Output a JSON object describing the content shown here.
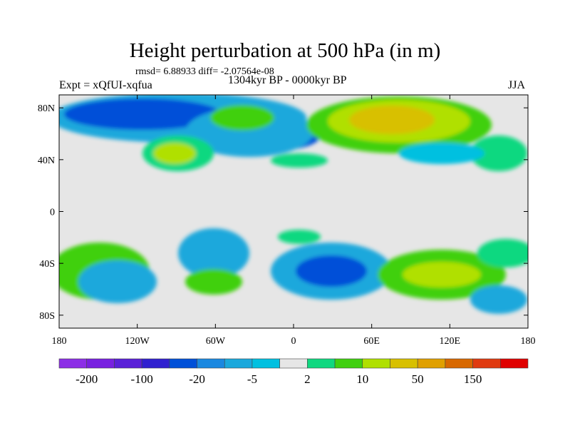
{
  "chart_data": {
    "type": "heatmap",
    "title": "Height perturbation at 500 hPa (in m)",
    "subtitle": "rmsd= 6.88933 diff= -2.07564e-08",
    "left_string": "Expt = xQfUI-xqfua",
    "center_string": "1304kyr BP - 0000kyr BP",
    "right_string": "JJA",
    "x_ticks": [
      "180",
      "120W",
      "60W",
      "0",
      "60E",
      "120E",
      "180"
    ],
    "x_values": [
      -180,
      -120,
      -60,
      0,
      60,
      120,
      180
    ],
    "y_ticks": [
      "80N",
      "40N",
      "0",
      "40S",
      "80S"
    ],
    "y_values": [
      80,
      40,
      0,
      -40,
      -80
    ],
    "xlim": [
      -180,
      180
    ],
    "ylim": [
      -90,
      90
    ],
    "colorbar": {
      "levels": [
        -250,
        -200,
        -150,
        -100,
        -50,
        -20,
        -10,
        -5,
        -2,
        2,
        5,
        10,
        20,
        50,
        100,
        150,
        200
      ],
      "labels": [
        "-200",
        "-100",
        "-20",
        "-5",
        "2",
        "10",
        "50",
        "150"
      ],
      "colors": [
        "#8c2ee6",
        "#7820e0",
        "#5a20d8",
        "#3020d0",
        "#0050d8",
        "#1a88e0",
        "#1aa8dc",
        "#00c0e0",
        "#e6e6e6",
        "#10d880",
        "#40d010",
        "#b0e000",
        "#d8c000",
        "#e0a000",
        "#d86800",
        "#e03a10",
        "#e00000"
      ]
    }
  }
}
